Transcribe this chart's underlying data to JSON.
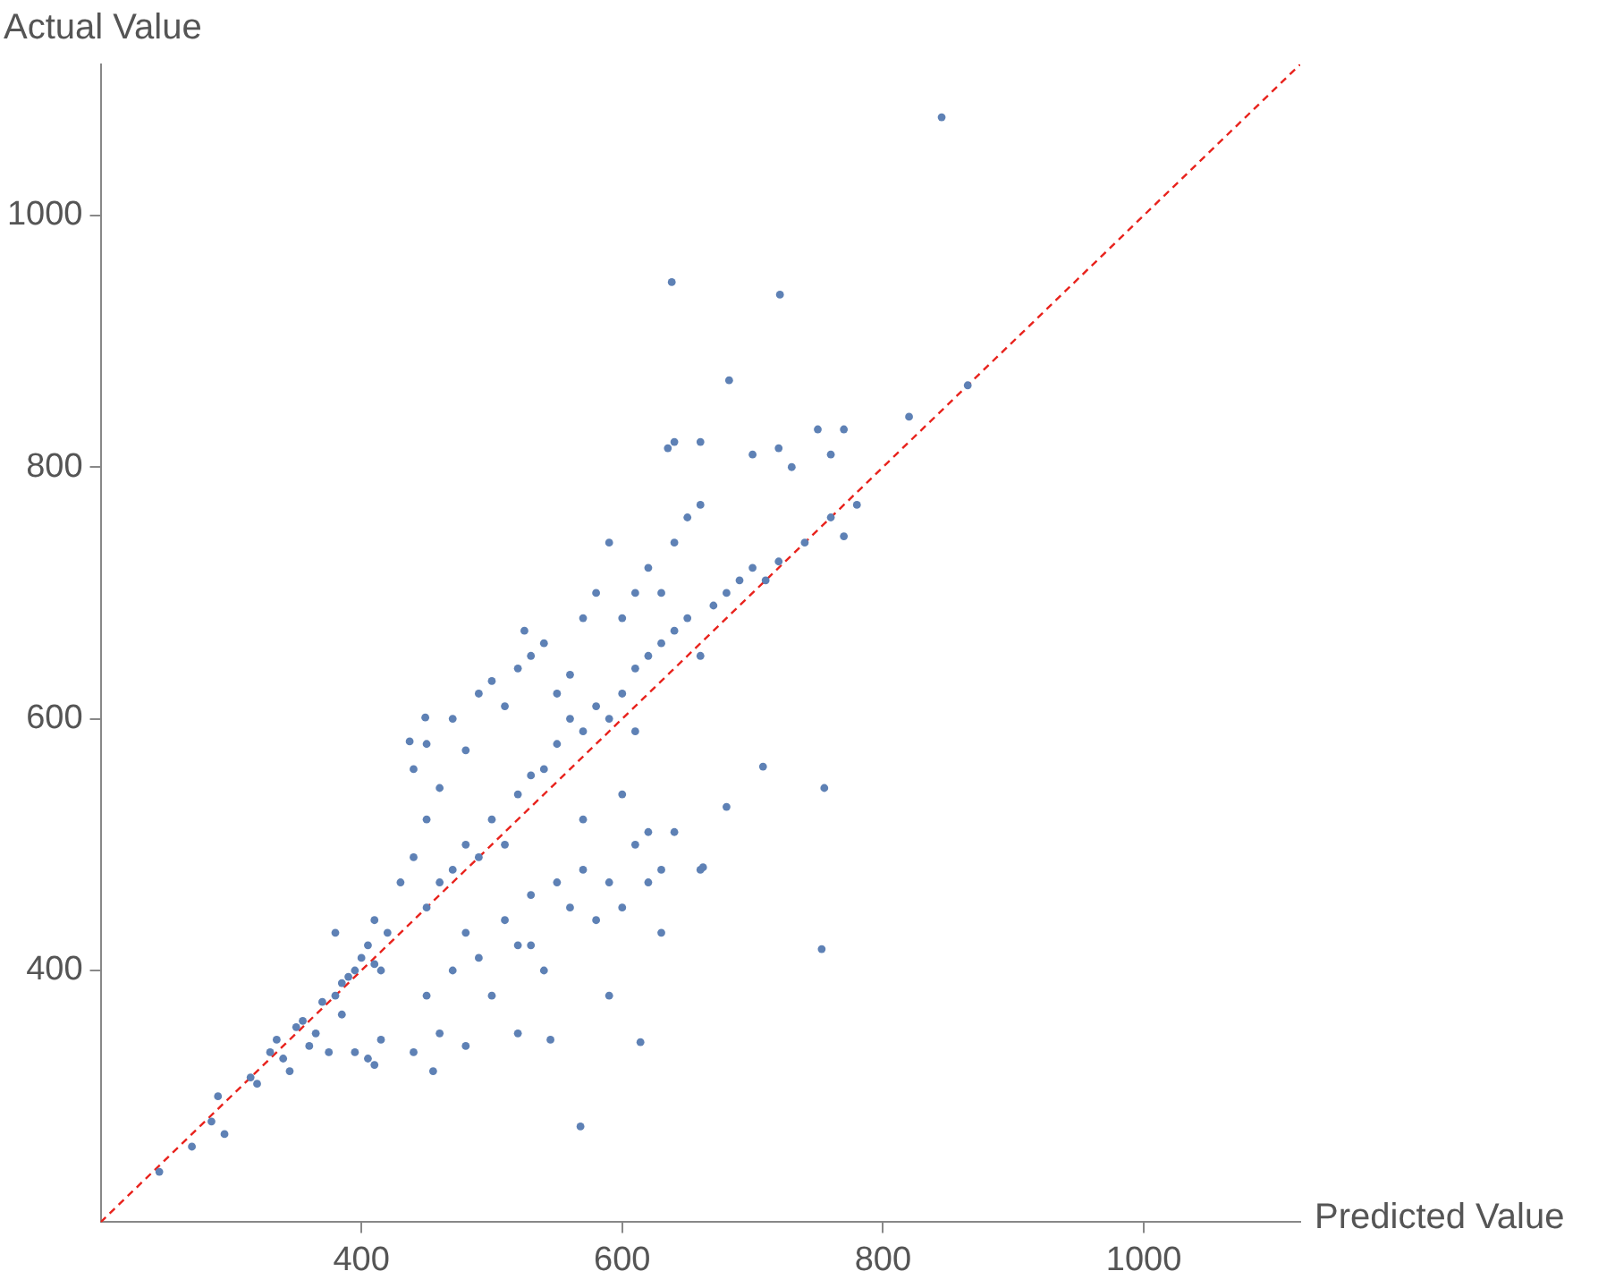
{
  "chart_data": {
    "type": "scatter",
    "xlabel": "Predicted Value",
    "ylabel": "Actual Value",
    "xlim": [
      200,
      1120
    ],
    "ylim": [
      200,
      1120
    ],
    "xticks": [
      400,
      600,
      800,
      1000
    ],
    "yticks": [
      400,
      600,
      800,
      1000
    ],
    "grid": false,
    "legend": false,
    "marker": "circle",
    "series": [
      {
        "color": "#5e81b5",
        "x": [
          245,
          270,
          285,
          290,
          295,
          315,
          320,
          330,
          335,
          340,
          345,
          350,
          355,
          360,
          365,
          370,
          375,
          380,
          385,
          390,
          395,
          400,
          405,
          410,
          415,
          420,
          410,
          380,
          385,
          395,
          405,
          410,
          415,
          430,
          440,
          450,
          440,
          450,
          460,
          470,
          480,
          490,
          500,
          510,
          520,
          530,
          540,
          550,
          525,
          560,
          570,
          580,
          590,
          600,
          610,
          620,
          630,
          640,
          650,
          660,
          635,
          640,
          682,
          660,
          700,
          720,
          730,
          750,
          770,
          760,
          780,
          820,
          865,
          638,
          721,
          845,
          450,
          460,
          470,
          480,
          490,
          500,
          510,
          520,
          530,
          540,
          550,
          560,
          570,
          580,
          590,
          600,
          610,
          620,
          630,
          640,
          650,
          660,
          670,
          680,
          690,
          700,
          710,
          720,
          740,
          760,
          770,
          450,
          460,
          470,
          480,
          490,
          500,
          510,
          520,
          530,
          540,
          550,
          560,
          570,
          580,
          590,
          600,
          610,
          620,
          630,
          640,
          660,
          680,
          708,
          755,
          753,
          568,
          614,
          662,
          440,
          455,
          480,
          520,
          545,
          590,
          630,
          620,
          600,
          610,
          570,
          530,
          437,
          449
        ],
        "values": [
          240,
          260,
          280,
          300,
          270,
          315,
          310,
          335,
          345,
          330,
          320,
          355,
          360,
          340,
          350,
          375,
          335,
          380,
          390,
          395,
          400,
          410,
          420,
          405,
          400,
          430,
          440,
          430,
          365,
          335,
          330,
          325,
          345,
          470,
          490,
          520,
          560,
          580,
          545,
          600,
          575,
          620,
          630,
          610,
          640,
          650,
          660,
          620,
          670,
          635,
          680,
          700,
          740,
          680,
          700,
          720,
          700,
          740,
          760,
          770,
          815,
          820,
          869,
          820,
          810,
          815,
          800,
          830,
          830,
          810,
          770,
          840,
          865,
          947,
          937,
          1078,
          450,
          470,
          480,
          500,
          490,
          520,
          500,
          540,
          555,
          560,
          580,
          600,
          590,
          610,
          600,
          620,
          640,
          650,
          660,
          670,
          680,
          650,
          690,
          700,
          710,
          720,
          710,
          725,
          740,
          760,
          745,
          380,
          350,
          400,
          430,
          410,
          380,
          440,
          420,
          460,
          400,
          470,
          450,
          480,
          440,
          470,
          450,
          500,
          470,
          480,
          510,
          480,
          530,
          562,
          545,
          417,
          276,
          343,
          482,
          335,
          320,
          340,
          350,
          345,
          380,
          430,
          510,
          540,
          590,
          520,
          420,
          582,
          601
        ]
      },
      {
        "type": "line",
        "color": "#e8221c",
        "marker": "none",
        "line_style": "dashed",
        "x": [
          200,
          1120
        ],
        "values": [
          200,
          1120
        ]
      }
    ]
  }
}
